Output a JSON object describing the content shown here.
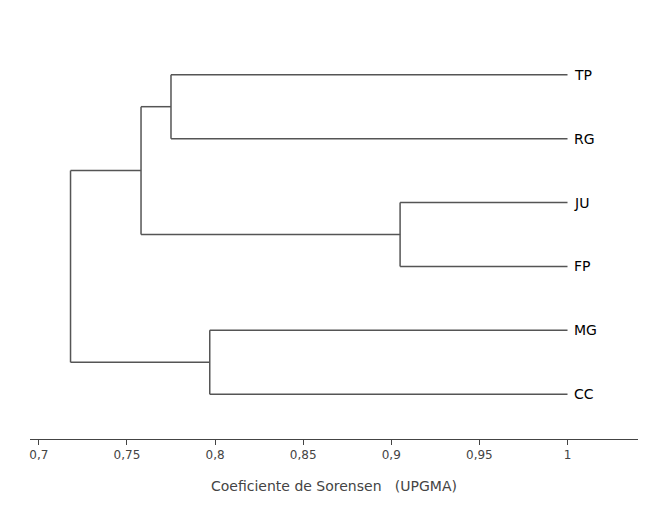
{
  "chart_data": {
    "type": "dendrogram",
    "xlabel": "Coeficiente de Sorensen   (UPGMA)",
    "color": "#555555",
    "grid": false,
    "xlim": [
      0.695,
      1.04
    ],
    "xticks": [
      {
        "value": 0.7,
        "label": "0,7"
      },
      {
        "value": 0.75,
        "label": "0,75"
      },
      {
        "value": 0.8,
        "label": "0,8"
      },
      {
        "value": 0.85,
        "label": "0,85"
      },
      {
        "value": 0.9,
        "label": "0,9"
      },
      {
        "value": 0.95,
        "label": "0,95"
      },
      1
    ],
    "tree": {
      "value": 0.718,
      "children": [
        {
          "value": 0.758,
          "children": [
            {
              "value": 0.775,
              "children": [
                {
                  "label": "TP",
                  "value": 1.0
                },
                {
                  "label": "RG",
                  "value": 1.0
                }
              ]
            },
            {
              "value": 0.905,
              "children": [
                {
                  "label": "JU",
                  "value": 1.0
                },
                {
                  "label": "FP",
                  "value": 1.0
                }
              ]
            }
          ]
        },
        {
          "value": 0.797,
          "children": [
            {
              "label": "MG",
              "value": 1.0
            },
            {
              "label": "CC",
              "value": 1.0
            }
          ]
        }
      ]
    }
  }
}
